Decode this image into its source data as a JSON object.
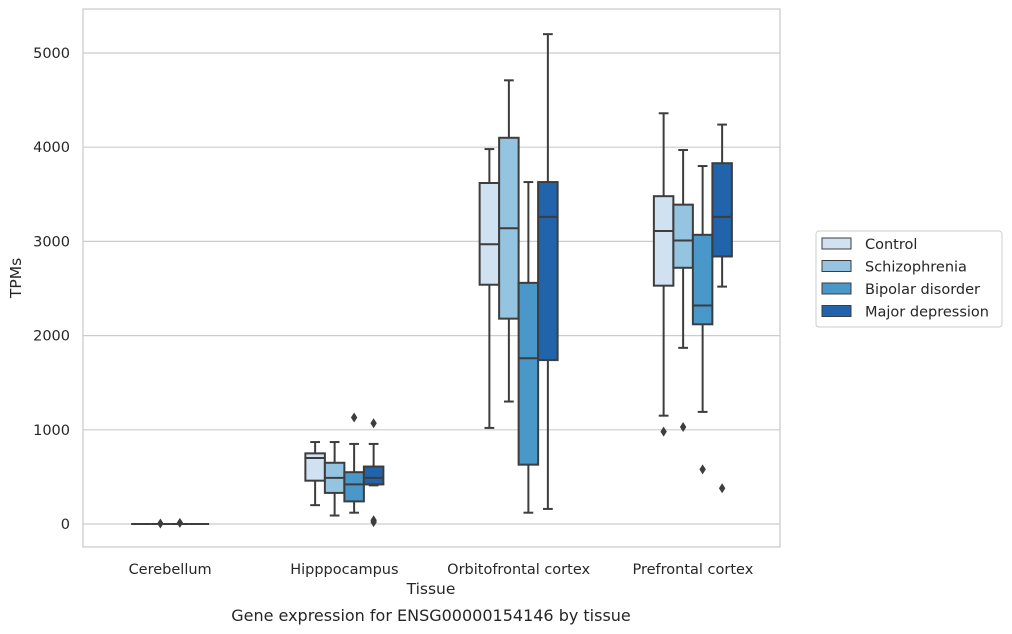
{
  "chart_data": {
    "type": "box",
    "caption": "Gene expression for ENSG00000154146 by tissue",
    "xlabel": "Tissue",
    "ylabel": "TPMs",
    "ylim": [
      -250,
      5480
    ],
    "yticks": [
      0,
      1000,
      2000,
      3000,
      4000,
      5000
    ],
    "grid": "horizontal",
    "legend_position": "right",
    "categories": [
      "Cerebellum",
      "Hipppocampus",
      "Orbitofrontal cortex",
      "Prefrontal cortex"
    ],
    "series": [
      {
        "name": "Control",
        "color": "#d0e1f2",
        "boxes": [
          {
            "min": 0,
            "q1": 0,
            "median": 0,
            "q3": 0,
            "max": 0,
            "outliers": []
          },
          {
            "min": 200,
            "q1": 460,
            "median": 700,
            "q3": 750,
            "max": 870,
            "outliers": []
          },
          {
            "min": 1020,
            "q1": 2540,
            "median": 2970,
            "q3": 3620,
            "max": 3980,
            "outliers": []
          },
          {
            "min": 1150,
            "q1": 2530,
            "median": 3110,
            "q3": 3480,
            "max": 4360,
            "outliers": [
              980
            ]
          }
        ]
      },
      {
        "name": "Schizophrenia",
        "color": "#94c4df",
        "boxes": [
          {
            "min": 0,
            "q1": 0,
            "median": 0,
            "q3": 0,
            "max": 0,
            "outliers": [
              5
            ]
          },
          {
            "min": 90,
            "q1": 330,
            "median": 490,
            "q3": 650,
            "max": 870,
            "outliers": []
          },
          {
            "min": 1300,
            "q1": 2180,
            "median": 3140,
            "q3": 4100,
            "max": 4710,
            "outliers": []
          },
          {
            "min": 1870,
            "q1": 2720,
            "median": 3010,
            "q3": 3390,
            "max": 3970,
            "outliers": [
              1030
            ]
          }
        ]
      },
      {
        "name": "Bipolar disorder",
        "color": "#4a98c9",
        "boxes": [
          {
            "min": 0,
            "q1": 0,
            "median": 0,
            "q3": 0,
            "max": 0,
            "outliers": [
              12
            ]
          },
          {
            "min": 120,
            "q1": 240,
            "median": 420,
            "q3": 550,
            "max": 850,
            "outliers": [
              1130
            ]
          },
          {
            "min": 120,
            "q1": 630,
            "median": 1760,
            "q3": 2560,
            "max": 3630,
            "outliers": []
          },
          {
            "min": 1190,
            "q1": 2120,
            "median": 2320,
            "q3": 3070,
            "max": 3800,
            "outliers": [
              580
            ]
          }
        ]
      },
      {
        "name": "Major depression",
        "color": "#2164ab",
        "boxes": [
          {
            "min": 0,
            "q1": 0,
            "median": 0,
            "q3": 0,
            "max": 0,
            "outliers": []
          },
          {
            "min": 410,
            "q1": 420,
            "median": 490,
            "q3": 610,
            "max": 850,
            "outliers": [
              1070,
              40,
              20
            ]
          },
          {
            "min": 160,
            "q1": 1740,
            "median": 3260,
            "q3": 3630,
            "max": 5200,
            "outliers": []
          },
          {
            "min": 2520,
            "q1": 2840,
            "median": 3260,
            "q3": 3830,
            "max": 4240,
            "outliers": [
              380
            ]
          }
        ]
      }
    ]
  }
}
